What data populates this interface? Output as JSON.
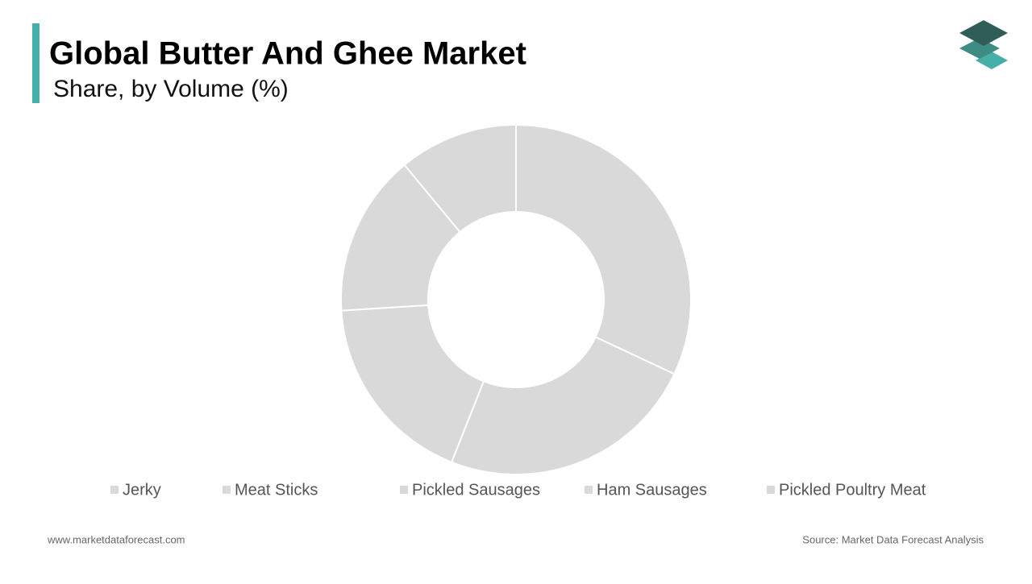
{
  "chart_data": {
    "type": "pie",
    "title": "Global Butter And Ghee Market",
    "subtitle": "Share, by Volume (%)",
    "categories": [
      "Jerky",
      "Meat Sticks",
      "Pickled Sausages",
      "Ham Sausages",
      "Pickled Poultry Meat"
    ],
    "values": [
      32,
      24,
      18,
      15,
      11
    ],
    "color": "#d9d9d9",
    "donut": true
  },
  "footer": {
    "website": "www.marketdataforecast.com",
    "source": "Source: Market Data Forecast Analysis"
  }
}
